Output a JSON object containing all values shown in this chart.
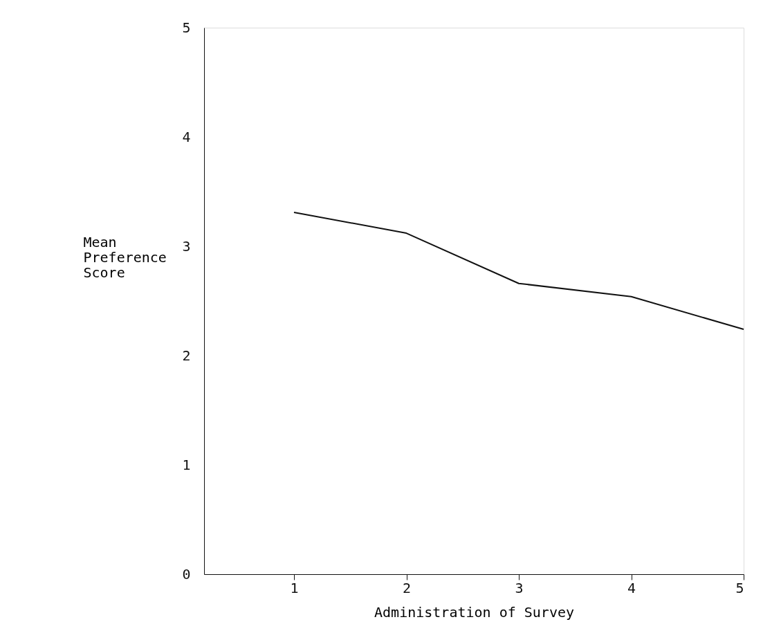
{
  "chart_data": {
    "type": "line",
    "xlabel": "Administration of Survey",
    "ylabel": "Mean Preference Score",
    "x": [
      1,
      2,
      3,
      4,
      5
    ],
    "series": [
      {
        "color": "#111111",
        "values": [
          3.31,
          3.12,
          2.66,
          2.54,
          2.24
        ]
      }
    ],
    "xlim": [
      0.2,
      5
    ],
    "xticks": [
      1,
      2,
      3,
      4,
      5
    ],
    "ylim": [
      0,
      5
    ],
    "yticks": [
      0,
      1,
      2,
      3,
      4,
      5
    ],
    "grid": false,
    "marker": "none",
    "line_style": "solid"
  }
}
